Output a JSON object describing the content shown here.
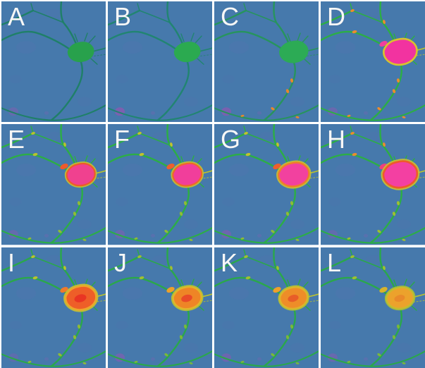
{
  "figure": {
    "name": "neuron-pseudocolor-montage",
    "gutter_color": "#ffffff",
    "background_blue": "#4679ac",
    "label_color": "#f7f7f7",
    "purple_blob_color": "#8a5ab2",
    "panels": [
      {
        "label": "A",
        "bg": "#4679ac",
        "dend": "#1f8068",
        "right": "#1f8068",
        "soma": "#28a14c",
        "core": "transparent",
        "halo": "transparent",
        "halo2": "transparent",
        "variUpper": "transparent",
        "variLower": "transparent",
        "prox": "transparent",
        "blobOpacity": 0.45,
        "somaScale": 1.0
      },
      {
        "label": "B",
        "bg": "#4679ac",
        "dend": "#218571",
        "right": "#218571",
        "soma": "#2baa50",
        "core": "transparent",
        "halo": "transparent",
        "halo2": "transparent",
        "variUpper": "transparent",
        "variLower": "transparent",
        "prox": "transparent",
        "blobOpacity": 0.8,
        "somaScale": 1.0
      },
      {
        "label": "C",
        "bg": "#4679ac",
        "dend": "#27945d",
        "right": "#27945d",
        "soma": "#2cab55",
        "core": "transparent",
        "halo": "transparent",
        "halo2": "transparent",
        "variUpper": "transparent",
        "variLower": "#e8872c",
        "prox": "transparent",
        "blobOpacity": 0.75,
        "somaScale": 1.1
      },
      {
        "label": "D",
        "bg": "#4679ac",
        "dend": "#2cae45",
        "right": "#bcc32e",
        "soma": "#f233a0",
        "core": "transparent",
        "halo": "#d8c22e",
        "halo2": "transparent",
        "variUpper": "#ec8c2c",
        "variLower": "#ec8c2c",
        "prox": "#f03f9e",
        "blobOpacity": 0.5,
        "somaScale": 1.18
      },
      {
        "label": "E",
        "bg": "#4679ac",
        "dend": "#2cae45",
        "right": "#bcc32e",
        "soma": "#f0418f",
        "core": "transparent",
        "halo": "#ee5a2b",
        "halo2": "#c9c32e",
        "variUpper": "#b8c32c",
        "variLower": "#8fbc35",
        "prox": "#ee5a2b",
        "blobOpacity": 0.45,
        "somaScale": 1.0
      },
      {
        "label": "F",
        "bg": "#4679ac",
        "dend": "#2cae45",
        "right": "#bcc32e",
        "soma": "#f13e9b",
        "core": "transparent",
        "halo": "#ee672b",
        "halo2": "#c9c32e",
        "variUpper": "#c2c32c",
        "variLower": "#8fbc35",
        "prox": "#ee5f2b",
        "blobOpacity": 0.5,
        "somaScale": 1.02
      },
      {
        "label": "G",
        "bg": "#4679ac",
        "dend": "#2cae45",
        "right": "#bcc32e",
        "soma": "#f2419f",
        "core": "transparent",
        "halo": "#ef7d2a",
        "halo2": "#cdc32d",
        "variUpper": "#c2c32c",
        "variLower": "#8fbc35",
        "prox": "#ee5f2b",
        "blobOpacity": 0.55,
        "somaScale": 1.08
      },
      {
        "label": "H",
        "bg": "#4679ac",
        "dend": "#2cae45",
        "right": "#bcc32e",
        "soma": "#f340a2",
        "core": "transparent",
        "halo": "#ee5a2b",
        "halo2": "#cdc32d",
        "variUpper": "#ec8c2c",
        "variLower": "#9fc030",
        "prox": "#f0417e",
        "blobOpacity": 0.4,
        "somaScale": 1.2
      },
      {
        "label": "I",
        "bg": "#4679ac",
        "dend": "#2aa84a",
        "right": "#bcc32e",
        "soma": "#ee5e28",
        "core": "#e93523",
        "halo": "#eda52a",
        "halo2": "#cbc22d",
        "variUpper": "#b8c32c",
        "variLower": "#8fbc35",
        "prox": "#ee7a2b",
        "blobOpacity": 0.35,
        "somaScale": 1.08
      },
      {
        "label": "J",
        "bg": "#4679ac",
        "dend": "#2aa84a",
        "right": "#bcc32e",
        "soma": "#ee8526",
        "core": "#e94b28",
        "halo": "#e2b42a",
        "halo2": "#b9c430",
        "variUpper": "#9fc030",
        "variLower": "#79b83b",
        "prox": "#eda02b",
        "blobOpacity": 0.6,
        "somaScale": 1.0
      },
      {
        "label": "K",
        "bg": "#4679ac",
        "dend": "#2aa84a",
        "right": "#bcc32e",
        "soma": "#ee8d28",
        "core": "#e85d28",
        "halo": "#ddb42b",
        "halo2": "#b9c430",
        "variUpper": "#9fc030",
        "variLower": "#79b83b",
        "prox": "#eda02b",
        "blobOpacity": 0.55,
        "somaScale": 0.97
      },
      {
        "label": "L",
        "bg": "#4679ac",
        "dend": "#2aa84a",
        "right": "#bcc32e",
        "soma": "#eca22c",
        "core": "#e98a2a",
        "halo": "#cbb92d",
        "halo2": "#a9c233",
        "variUpper": "#9fc030",
        "variLower": "#79b83b",
        "prox": "#d8b22c",
        "blobOpacity": 0.5,
        "somaScale": 0.95
      }
    ]
  }
}
